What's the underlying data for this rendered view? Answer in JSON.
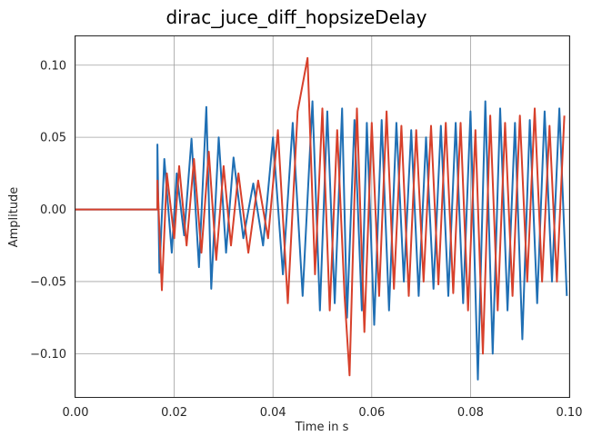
{
  "chart_data": {
    "type": "line",
    "title": "dirac_juce_diff_hopsizeDelay",
    "xlabel": "Time in s",
    "ylabel": "Amplitude",
    "xlim": [
      0.0,
      0.1
    ],
    "ylim": [
      -0.13,
      0.12
    ],
    "xticks": [
      "0.00",
      "0.02",
      "0.04",
      "0.06",
      "0.08",
      "0.10"
    ],
    "xtick_values": [
      0.0,
      0.02,
      0.04,
      0.06,
      0.08,
      0.1
    ],
    "yticks": [
      "0.10",
      "0.05",
      "0.00",
      "−0.05",
      "−0.10"
    ],
    "ytick_values": [
      0.1,
      0.05,
      0.0,
      -0.05,
      -0.1
    ],
    "grid": true,
    "onset_time": 0.0166,
    "series": [
      {
        "color": "#1f6fb4",
        "onset_value": 0.0,
        "x": [
          0.0166,
          0.017,
          0.018,
          0.0195,
          0.0205,
          0.022,
          0.0235,
          0.025,
          0.0265,
          0.0275,
          0.029,
          0.0305,
          0.032,
          0.034,
          0.036,
          0.038,
          0.04,
          0.042,
          0.044,
          0.046,
          0.048,
          0.0495,
          0.051,
          0.0525,
          0.054,
          0.055,
          0.0565,
          0.058,
          0.059,
          0.0605,
          0.062,
          0.0635,
          0.065,
          0.0665,
          0.068,
          0.0695,
          0.071,
          0.0725,
          0.074,
          0.0755,
          0.077,
          0.0785,
          0.08,
          0.0815,
          0.083,
          0.0845,
          0.086,
          0.0875,
          0.089,
          0.0905,
          0.092,
          0.0935,
          0.095,
          0.0965,
          0.098,
          0.0995
        ],
        "y": [
          0.045,
          -0.044,
          0.035,
          -0.03,
          0.025,
          -0.018,
          0.049,
          -0.04,
          0.071,
          -0.055,
          0.05,
          -0.03,
          0.036,
          -0.02,
          0.018,
          -0.025,
          0.05,
          -0.045,
          0.06,
          -0.06,
          0.075,
          -0.07,
          0.068,
          -0.065,
          0.07,
          -0.075,
          0.062,
          -0.07,
          0.06,
          -0.08,
          0.062,
          -0.07,
          0.06,
          -0.05,
          0.055,
          -0.06,
          0.05,
          -0.055,
          0.058,
          -0.06,
          0.06,
          -0.065,
          0.068,
          -0.118,
          0.075,
          -0.1,
          0.07,
          -0.07,
          0.06,
          -0.09,
          0.062,
          -0.065,
          0.068,
          -0.05,
          0.07,
          -0.06
        ]
      },
      {
        "color": "#d7402b",
        "onset_value": 0.0,
        "x": [
          0.0166,
          0.0175,
          0.0185,
          0.02,
          0.021,
          0.0225,
          0.024,
          0.0255,
          0.027,
          0.0285,
          0.03,
          0.0315,
          0.033,
          0.035,
          0.037,
          0.039,
          0.041,
          0.043,
          0.045,
          0.047,
          0.0485,
          0.05,
          0.0515,
          0.053,
          0.0545,
          0.0555,
          0.057,
          0.0585,
          0.06,
          0.0615,
          0.063,
          0.0645,
          0.066,
          0.0675,
          0.069,
          0.0705,
          0.072,
          0.0735,
          0.075,
          0.0765,
          0.078,
          0.0795,
          0.081,
          0.0825,
          0.084,
          0.0855,
          0.087,
          0.0885,
          0.09,
          0.0915,
          0.093,
          0.0945,
          0.096,
          0.0975,
          0.099
        ],
        "y": [
          0.02,
          -0.056,
          0.025,
          -0.02,
          0.03,
          -0.025,
          0.035,
          -0.03,
          0.04,
          -0.035,
          0.03,
          -0.025,
          0.025,
          -0.03,
          0.02,
          -0.02,
          0.055,
          -0.065,
          0.068,
          0.105,
          -0.045,
          0.07,
          -0.07,
          0.055,
          -0.06,
          -0.115,
          0.07,
          -0.085,
          0.06,
          -0.06,
          0.068,
          -0.055,
          0.058,
          -0.06,
          0.055,
          -0.05,
          0.058,
          -0.052,
          0.06,
          -0.058,
          0.06,
          -0.07,
          0.055,
          -0.1,
          0.065,
          -0.07,
          0.06,
          -0.06,
          0.065,
          -0.05,
          0.07,
          -0.05,
          0.058,
          -0.05,
          0.065
        ]
      }
    ]
  }
}
